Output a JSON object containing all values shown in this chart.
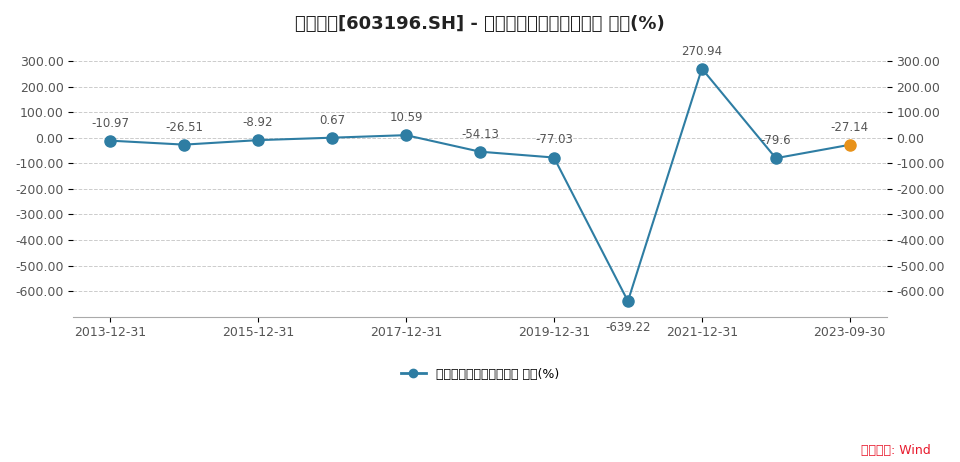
{
  "title": "日播时尚[603196.SH] - 归属母公司股东的净利润 同比(%)",
  "x_positions": [
    0,
    1,
    2,
    3,
    4,
    5,
    6,
    7,
    8,
    9,
    10
  ],
  "values": [
    -10.97,
    -26.51,
    -8.92,
    0.67,
    10.59,
    -54.13,
    -77.03,
    -639.22,
    270.94,
    -79.6,
    -27.14
  ],
  "annotations": [
    "-10.97",
    "-26.51",
    "-8.92",
    "0.67",
    "10.59",
    "-54.13",
    "-77.03",
    "-639.22",
    "270.94",
    "-79.6",
    "-27.14"
  ],
  "line_color": "#2e7da3",
  "dot_color_normal": "#2e7da3",
  "dot_color_last": "#e8921a",
  "legend_label": "归属母公司股东的净利润 同比(%)",
  "source_text": "数据来源: Wind",
  "source_color": "#e8192c",
  "ylim": [
    -700,
    350
  ],
  "yticks": [
    -600,
    -500,
    -400,
    -300,
    -200,
    -100,
    0,
    100,
    200,
    300
  ],
  "ytick_labels": [
    "-600.00",
    "-500.00",
    "-400.00",
    "-300.00",
    "-200.00",
    "-100.00",
    "0.00",
    "100.00",
    "200.00",
    "300.00"
  ],
  "x_tick_positions": [
    0,
    2,
    4,
    6,
    8,
    10
  ],
  "x_tick_labels": [
    "2013-12-31",
    "2015-12-31",
    "2017-12-31",
    "2019-12-31",
    "2021-12-31",
    "2023-09-30"
  ],
  "bg_color": "#ffffff",
  "grid_color": "#cccccc",
  "title_fontsize": 13,
  "annotation_fontsize": 8.5,
  "tick_fontsize": 9,
  "legend_fontsize": 9,
  "source_fontsize": 9
}
